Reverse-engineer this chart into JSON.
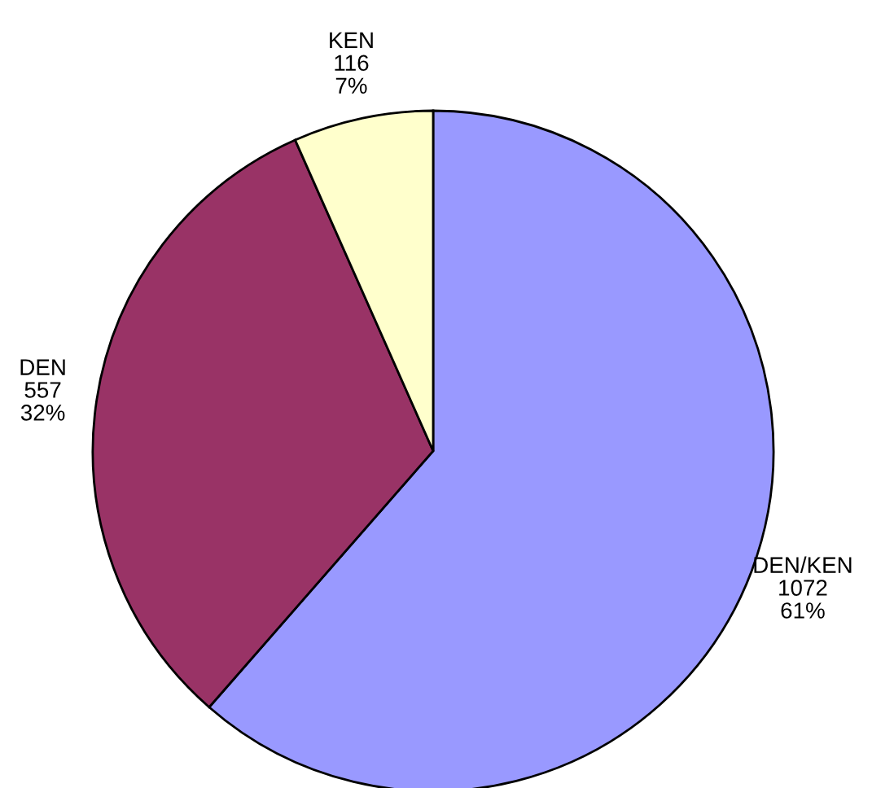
{
  "chart_data": {
    "type": "pie",
    "categories": [
      "DEN/KEN",
      "DEN",
      "KEN"
    ],
    "values": [
      1072,
      557,
      116
    ],
    "value_labels": [
      "1072\n61%",
      "557\n32%",
      "116\n7%"
    ],
    "colors": [
      "#9999ff",
      "#993366",
      "#ffffcc"
    ]
  }
}
